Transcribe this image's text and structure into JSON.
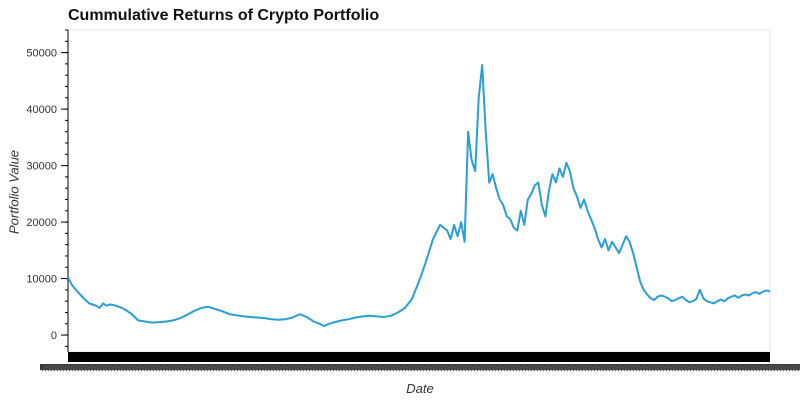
{
  "chart_data": {
    "type": "line",
    "title": "Cummulative Returns of Crypto Portfolio",
    "xlabel": "Date",
    "ylabel": "Portfolio Value",
    "ylim": [
      -3000,
      54000
    ],
    "y_ticks": [
      0,
      10000,
      20000,
      30000,
      40000,
      50000
    ],
    "grid": false,
    "legend": "none",
    "line_color": "#2a9fd6",
    "series": [
      {
        "x": [
          0,
          0.005,
          0.01,
          0.015,
          0.02,
          0.025,
          0.03,
          0.035,
          0.04,
          0.045,
          0.05,
          0.055,
          0.06,
          0.065,
          0.07,
          0.075,
          0.08,
          0.09,
          0.1,
          0.11,
          0.12,
          0.13,
          0.14,
          0.15,
          0.16,
          0.17,
          0.18,
          0.19,
          0.2,
          0.21,
          0.22,
          0.23,
          0.24,
          0.25,
          0.26,
          0.27,
          0.28,
          0.29,
          0.3,
          0.31,
          0.32,
          0.33,
          0.34,
          0.35,
          0.36,
          0.365,
          0.37,
          0.38,
          0.39,
          0.4,
          0.41,
          0.42,
          0.43,
          0.44,
          0.45,
          0.46,
          0.47,
          0.48,
          0.49,
          0.5,
          0.51,
          0.52,
          0.53,
          0.54,
          0.545,
          0.55,
          0.555,
          0.56,
          0.565,
          0.57,
          0.575,
          0.58,
          0.585,
          0.59,
          0.595,
          0.6,
          0.605,
          0.61,
          0.615,
          0.62,
          0.625,
          0.63,
          0.635,
          0.64,
          0.645,
          0.65,
          0.655,
          0.66,
          0.665,
          0.67,
          0.675,
          0.68,
          0.685,
          0.69,
          0.695,
          0.7,
          0.705,
          0.71,
          0.715,
          0.72,
          0.725,
          0.73,
          0.735,
          0.74,
          0.745,
          0.75,
          0.755,
          0.76,
          0.765,
          0.77,
          0.775,
          0.78,
          0.785,
          0.79,
          0.795,
          0.8,
          0.805,
          0.81,
          0.815,
          0.82,
          0.825,
          0.83,
          0.835,
          0.84,
          0.845,
          0.85,
          0.855,
          0.86,
          0.865,
          0.87,
          0.875,
          0.88,
          0.885,
          0.89,
          0.895,
          0.9,
          0.905,
          0.91,
          0.915,
          0.92,
          0.925,
          0.93,
          0.935,
          0.94,
          0.945,
          0.95,
          0.955,
          0.96,
          0.965,
          0.97,
          0.975,
          0.98,
          0.985,
          0.99,
          0.995,
          1.0
        ],
        "y": [
          10200,
          9000,
          8200,
          7500,
          6800,
          6200,
          5600,
          5400,
          5200,
          4800,
          5600,
          5200,
          5400,
          5300,
          5100,
          4900,
          4600,
          3800,
          2600,
          2400,
          2200,
          2300,
          2400,
          2600,
          3000,
          3600,
          4300,
          4800,
          5000,
          4600,
          4200,
          3700,
          3500,
          3300,
          3200,
          3100,
          3000,
          2800,
          2700,
          2800,
          3100,
          3700,
          3200,
          2400,
          1900,
          1600,
          1900,
          2300,
          2600,
          2800,
          3100,
          3300,
          3400,
          3300,
          3200,
          3400,
          4000,
          4800,
          6400,
          9500,
          13000,
          17000,
          19500,
          18500,
          17000,
          19500,
          17500,
          20000,
          16500,
          36000,
          31000,
          29000,
          42000,
          47800,
          36000,
          27000,
          28500,
          26000,
          24000,
          23000,
          21000,
          20500,
          19000,
          18500,
          22000,
          19500,
          24000,
          25000,
          26500,
          27000,
          23000,
          21000,
          25500,
          28500,
          27000,
          29500,
          28000,
          30500,
          29000,
          26000,
          24500,
          22500,
          24000,
          22000,
          20500,
          19000,
          17000,
          15500,
          17000,
          15000,
          16500,
          15500,
          14500,
          16000,
          17500,
          16500,
          14500,
          12000,
          9500,
          8000,
          7200,
          6500,
          6200,
          6800,
          7000,
          6800,
          6500,
          6000,
          6200,
          6500,
          6800,
          6200,
          5800,
          6000,
          6400,
          8000,
          6500,
          6000,
          5800,
          5600,
          6000,
          6300,
          6000,
          6500,
          6800,
          7000,
          6600,
          7000,
          7200,
          7000,
          7400,
          7600,
          7300,
          7700,
          7900,
          7700
        ]
      }
    ]
  }
}
